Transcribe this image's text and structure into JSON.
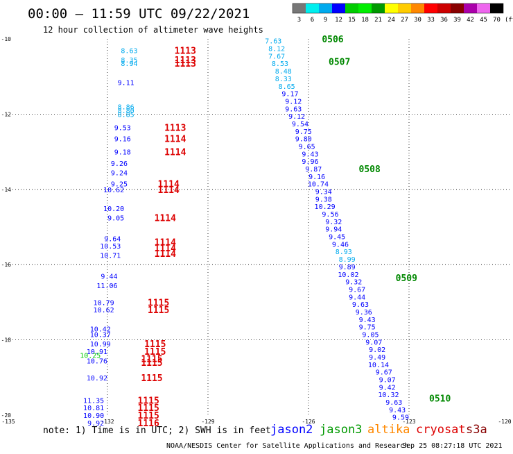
{
  "header": {
    "title": "00:00 – 11:59 UTC 09/22/2021",
    "subtitle": "12 hour collection of altimeter wave heights"
  },
  "colorbar": {
    "labels": [
      "3",
      "6",
      "9",
      "12",
      "15",
      "18",
      "21",
      "24",
      "27",
      "30",
      "33",
      "36",
      "39",
      "42",
      "45",
      "70"
    ],
    "unit": "(ft)",
    "colors": [
      "#777777",
      "#00eeee",
      "#00aaee",
      "#0000ff",
      "#00cc00",
      "#00ee00",
      "#009900",
      "#ffff00",
      "#ffcc00",
      "#ff8800",
      "#ff0000",
      "#cc0000",
      "#880000",
      "#aa00aa",
      "#ee66ee",
      "#000000"
    ]
  },
  "footer": {
    "note": "note:  1) Time is in UTC;  2) SWH is in feet",
    "credit": "NOAA/NESDIS Center for Satellite Applications and Research",
    "timestamp": "Sep 25 08:27:18 UTC 2021",
    "legend": [
      {
        "name": "jason2",
        "color": "#0000ff"
      },
      {
        "name": "jason3",
        "color": "#009900"
      },
      {
        "name": "altika",
        "color": "#ff8800"
      },
      {
        "name": "cryosat",
        "color": "#dd0000"
      },
      {
        "name": "s3a",
        "color": "#880000"
      }
    ]
  },
  "chart_data": {
    "type": "scatter",
    "title": "00:00 – 11:59 UTC 09/22/2021",
    "subtitle": "12 hour collection of altimeter wave heights",
    "xlabel": "",
    "ylabel": "",
    "xlim": [
      -135,
      -120
    ],
    "ylim": [
      -20,
      -10
    ],
    "x_ticks": [
      -135,
      -132,
      -129,
      -126,
      -123,
      -120
    ],
    "x_tick_labels": [
      "-135",
      "-132",
      "-129",
      "-126",
      "-123",
      "-120"
    ],
    "y_ticks": [
      -10,
      -12,
      -14,
      -16,
      -18,
      -20
    ],
    "y_tick_labels": [
      "-10",
      "-12",
      "-14",
      "-16",
      "-18",
      "-20"
    ],
    "grid": true,
    "series": [
      {
        "name": "jason2",
        "color": "#0000ff",
        "points": [
          {
            "lon": -131.1,
            "lat": -10.3,
            "swh": "8.63",
            "c": "#00aaee"
          },
          {
            "lon": -131.1,
            "lat": -10.55,
            "swh": "8.35",
            "c": "#00aaee"
          },
          {
            "lon": -131.1,
            "lat": -10.65,
            "swh": "8.94",
            "c": "#00aaee"
          },
          {
            "lon": -131.2,
            "lat": -11.15,
            "swh": "9.11",
            "c": "#0000ff"
          },
          {
            "lon": -131.2,
            "lat": -11.8,
            "swh": "8.86",
            "c": "#00aaee"
          },
          {
            "lon": -131.2,
            "lat": -11.9,
            "swh": "8.80",
            "c": "#00aaee"
          },
          {
            "lon": -131.2,
            "lat": -12.0,
            "swh": "8.85",
            "c": "#00aaee"
          },
          {
            "lon": -131.3,
            "lat": -12.35,
            "swh": "9.53",
            "c": "#0000ff"
          },
          {
            "lon": -131.3,
            "lat": -12.65,
            "swh": "9.16",
            "c": "#0000ff"
          },
          {
            "lon": -131.3,
            "lat": -13.0,
            "swh": "9.18",
            "c": "#0000ff"
          },
          {
            "lon": -131.4,
            "lat": -13.3,
            "swh": "9.26",
            "c": "#0000ff"
          },
          {
            "lon": -131.4,
            "lat": -13.55,
            "swh": "9.24",
            "c": "#0000ff"
          },
          {
            "lon": -131.4,
            "lat": -13.85,
            "swh": "9.25",
            "c": "#0000ff"
          },
          {
            "lon": -131.5,
            "lat": -14.0,
            "swh": "10.62",
            "c": "#0000ff"
          },
          {
            "lon": -131.5,
            "lat": -14.5,
            "swh": "10.20",
            "c": "#0000ff"
          },
          {
            "lon": -131.5,
            "lat": -14.75,
            "swh": "9.05",
            "c": "#0000ff"
          },
          {
            "lon": -131.6,
            "lat": -15.3,
            "swh": "9.64",
            "c": "#0000ff"
          },
          {
            "lon": -131.6,
            "lat": -15.5,
            "swh": "10.53",
            "c": "#0000ff"
          },
          {
            "lon": -131.6,
            "lat": -15.75,
            "swh": "10.71",
            "c": "#0000ff"
          },
          {
            "lon": -131.7,
            "lat": -16.3,
            "swh": "9.44",
            "c": "#0000ff"
          },
          {
            "lon": -131.7,
            "lat": -16.55,
            "swh": "11.06",
            "c": "#0000ff"
          },
          {
            "lon": -131.8,
            "lat": -17.0,
            "swh": "10.79",
            "c": "#0000ff"
          },
          {
            "lon": -131.8,
            "lat": -17.2,
            "swh": "10.62",
            "c": "#0000ff"
          },
          {
            "lon": -131.9,
            "lat": -17.7,
            "swh": "10.42",
            "c": "#0000ff"
          },
          {
            "lon": -131.9,
            "lat": -17.85,
            "swh": "10.37",
            "c": "#0000ff"
          },
          {
            "lon": -131.9,
            "lat": -18.1,
            "swh": "10.99",
            "c": "#0000ff"
          },
          {
            "lon": -132.0,
            "lat": -18.3,
            "swh": "10.91",
            "c": "#0000ff"
          },
          {
            "lon": -132.0,
            "lat": -18.55,
            "swh": "10.76",
            "c": "#0000ff"
          },
          {
            "lon": -132.0,
            "lat": -19.0,
            "swh": "10.92",
            "c": "#0000ff"
          },
          {
            "lon": -132.1,
            "lat": -19.6,
            "swh": "11.35",
            "c": "#0000ff"
          },
          {
            "lon": -132.1,
            "lat": -19.8,
            "swh": "10.81",
            "c": "#0000ff"
          },
          {
            "lon": -132.1,
            "lat": -20.0,
            "swh": "10.90",
            "c": "#0000ff"
          },
          {
            "lon": -132.1,
            "lat": -20.2,
            "swh": "9.92",
            "c": "#0000ff"
          }
        ]
      },
      {
        "name": "jason3",
        "color": "#009900",
        "points": [
          {
            "lon": -132.2,
            "lat": -18.4,
            "swh": "10.25",
            "c": "#00cc00"
          },
          {
            "lon": -126.8,
            "lat": -10.05,
            "swh": "7.63",
            "c": "#00aaee"
          },
          {
            "lon": -126.7,
            "lat": -10.25,
            "swh": "8.12",
            "c": "#00aaee"
          },
          {
            "lon": -126.7,
            "lat": -10.45,
            "swh": "7.67",
            "c": "#00aaee"
          },
          {
            "lon": -126.6,
            "lat": -10.65,
            "swh": "8.53",
            "c": "#00aaee"
          },
          {
            "lon": -126.5,
            "lat": -10.85,
            "swh": "8.48",
            "c": "#00aaee"
          },
          {
            "lon": -126.5,
            "lat": -11.05,
            "swh": "8.33",
            "c": "#00aaee"
          },
          {
            "lon": -126.4,
            "lat": -11.25,
            "swh": "8.65",
            "c": "#00aaee"
          },
          {
            "lon": -126.3,
            "lat": -11.45,
            "swh": "9.17",
            "c": "#0000ff"
          },
          {
            "lon": -126.2,
            "lat": -11.65,
            "swh": "9.12",
            "c": "#0000ff"
          },
          {
            "lon": -126.2,
            "lat": -11.85,
            "swh": "9.63",
            "c": "#0000ff"
          },
          {
            "lon": -126.1,
            "lat": -12.05,
            "swh": "9.12",
            "c": "#0000ff"
          },
          {
            "lon": -126.0,
            "lat": -12.25,
            "swh": "9.54",
            "c": "#0000ff"
          },
          {
            "lon": -125.9,
            "lat": -12.45,
            "swh": "9.75",
            "c": "#0000ff"
          },
          {
            "lon": -125.9,
            "lat": -12.65,
            "swh": "9.80",
            "c": "#0000ff"
          },
          {
            "lon": -125.8,
            "lat": -12.85,
            "swh": "9.65",
            "c": "#0000ff"
          },
          {
            "lon": -125.7,
            "lat": -13.05,
            "swh": "9.43",
            "c": "#0000ff"
          },
          {
            "lon": -125.7,
            "lat": -13.25,
            "swh": "9.96",
            "c": "#0000ff"
          },
          {
            "lon": -125.6,
            "lat": -13.45,
            "swh": "9.87",
            "c": "#0000ff"
          },
          {
            "lon": -125.5,
            "lat": -13.65,
            "swh": "9.16",
            "c": "#0000ff"
          },
          {
            "lon": -125.4,
            "lat": -13.85,
            "swh": "10.74",
            "c": "#0000ff"
          },
          {
            "lon": -125.3,
            "lat": -14.05,
            "swh": "9.34",
            "c": "#0000ff"
          },
          {
            "lon": -125.3,
            "lat": -14.25,
            "swh": "9.38",
            "c": "#0000ff"
          },
          {
            "lon": -125.2,
            "lat": -14.45,
            "swh": "10.29",
            "c": "#0000ff"
          },
          {
            "lon": -125.1,
            "lat": -14.65,
            "swh": "9.56",
            "c": "#0000ff"
          },
          {
            "lon": -125.0,
            "lat": -14.85,
            "swh": "9.32",
            "c": "#0000ff"
          },
          {
            "lon": -125.0,
            "lat": -15.05,
            "swh": "9.94",
            "c": "#0000ff"
          },
          {
            "lon": -124.9,
            "lat": -15.25,
            "swh": "9.45",
            "c": "#0000ff"
          },
          {
            "lon": -124.8,
            "lat": -15.45,
            "swh": "9.46",
            "c": "#0000ff"
          },
          {
            "lon": -124.7,
            "lat": -15.65,
            "swh": "8.93",
            "c": "#00aaee"
          },
          {
            "lon": -124.6,
            "lat": -15.85,
            "swh": "8.99",
            "c": "#00aaee"
          },
          {
            "lon": -124.6,
            "lat": -16.05,
            "swh": "9.89",
            "c": "#0000ff"
          },
          {
            "lon": -124.5,
            "lat": -16.25,
            "swh": "10.02",
            "c": "#0000ff"
          },
          {
            "lon": -124.4,
            "lat": -16.45,
            "swh": "9.32",
            "c": "#0000ff"
          },
          {
            "lon": -124.3,
            "lat": -16.65,
            "swh": "9.67",
            "c": "#0000ff"
          },
          {
            "lon": -124.3,
            "lat": -16.85,
            "swh": "9.44",
            "c": "#0000ff"
          },
          {
            "lon": -124.2,
            "lat": -17.05,
            "swh": "9.63",
            "c": "#0000ff"
          },
          {
            "lon": -124.1,
            "lat": -17.25,
            "swh": "9.36",
            "c": "#0000ff"
          },
          {
            "lon": -124.0,
            "lat": -17.45,
            "swh": "9.43",
            "c": "#0000ff"
          },
          {
            "lon": -124.0,
            "lat": -17.65,
            "swh": "9.75",
            "c": "#0000ff"
          },
          {
            "lon": -123.9,
            "lat": -17.85,
            "swh": "9.05",
            "c": "#0000ff"
          },
          {
            "lon": -123.8,
            "lat": -18.05,
            "swh": "9.07",
            "c": "#0000ff"
          },
          {
            "lon": -123.7,
            "lat": -18.25,
            "swh": "9.02",
            "c": "#0000ff"
          },
          {
            "lon": -123.7,
            "lat": -18.45,
            "swh": "9.49",
            "c": "#0000ff"
          },
          {
            "lon": -123.6,
            "lat": -18.65,
            "swh": "10.14",
            "c": "#0000ff"
          },
          {
            "lon": -123.5,
            "lat": -18.85,
            "swh": "9.67",
            "c": "#0000ff"
          },
          {
            "lon": -123.4,
            "lat": -19.05,
            "swh": "9.07",
            "c": "#0000ff"
          },
          {
            "lon": -123.4,
            "lat": -19.25,
            "swh": "9.42",
            "c": "#0000ff"
          },
          {
            "lon": -123.3,
            "lat": -19.45,
            "swh": "10.32",
            "c": "#0000ff"
          },
          {
            "lon": -123.2,
            "lat": -19.65,
            "swh": "9.63",
            "c": "#0000ff"
          },
          {
            "lon": -123.1,
            "lat": -19.85,
            "swh": "9.43",
            "c": "#0000ff"
          },
          {
            "lon": -123.0,
            "lat": -20.05,
            "swh": "9.59",
            "c": "#0000ff"
          }
        ]
      }
    ],
    "time_labels": [
      {
        "lon": -130.0,
        "lat": -10.3,
        "text": "1113",
        "color": "#dd0000"
      },
      {
        "lon": -130.0,
        "lat": -10.55,
        "text": "1113",
        "color": "#dd0000"
      },
      {
        "lon": -130.0,
        "lat": -10.65,
        "text": "1113",
        "color": "#dd0000"
      },
      {
        "lon": -130.3,
        "lat": -12.35,
        "text": "1113",
        "color": "#dd0000"
      },
      {
        "lon": -130.3,
        "lat": -12.65,
        "text": "1114",
        "color": "#dd0000"
      },
      {
        "lon": -130.3,
        "lat": -13.0,
        "text": "1114",
        "color": "#dd0000"
      },
      {
        "lon": -130.5,
        "lat": -13.85,
        "text": "1114",
        "color": "#dd0000"
      },
      {
        "lon": -130.5,
        "lat": -14.0,
        "text": "1114",
        "color": "#dd0000"
      },
      {
        "lon": -130.6,
        "lat": -14.75,
        "text": "1114",
        "color": "#dd0000"
      },
      {
        "lon": -130.6,
        "lat": -15.4,
        "text": "1114",
        "color": "#dd0000"
      },
      {
        "lon": -130.6,
        "lat": -15.55,
        "text": "1114",
        "color": "#dd0000"
      },
      {
        "lon": -130.6,
        "lat": -15.7,
        "text": "1114",
        "color": "#dd0000"
      },
      {
        "lon": -130.8,
        "lat": -17.0,
        "text": "1115",
        "color": "#dd0000"
      },
      {
        "lon": -130.8,
        "lat": -17.2,
        "text": "1115",
        "color": "#dd0000"
      },
      {
        "lon": -130.9,
        "lat": -18.1,
        "text": "1115",
        "color": "#dd0000"
      },
      {
        "lon": -130.9,
        "lat": -18.3,
        "text": "1115",
        "color": "#dd0000"
      },
      {
        "lon": -131.0,
        "lat": -18.5,
        "text": "1115",
        "color": "#dd0000"
      },
      {
        "lon": -131.0,
        "lat": -18.6,
        "text": "1115",
        "color": "#dd0000"
      },
      {
        "lon": -131.0,
        "lat": -19.0,
        "text": "1115",
        "color": "#dd0000"
      },
      {
        "lon": -131.1,
        "lat": -19.6,
        "text": "1115",
        "color": "#dd0000"
      },
      {
        "lon": -131.1,
        "lat": -19.8,
        "text": "1115",
        "color": "#dd0000"
      },
      {
        "lon": -131.1,
        "lat": -20.0,
        "text": "1115",
        "color": "#dd0000"
      },
      {
        "lon": -131.1,
        "lat": -20.2,
        "text": "1116",
        "color": "#dd0000"
      },
      {
        "lon": -125.6,
        "lat": -10.0,
        "text": "0506",
        "color": "#008800"
      },
      {
        "lon": -125.4,
        "lat": -10.6,
        "text": "0507",
        "color": "#008800"
      },
      {
        "lon": -124.5,
        "lat": -13.45,
        "text": "0508",
        "color": "#008800"
      },
      {
        "lon": -123.4,
        "lat": -16.35,
        "text": "0509",
        "color": "#008800"
      },
      {
        "lon": -122.4,
        "lat": -19.55,
        "text": "0510",
        "color": "#008800"
      }
    ]
  }
}
